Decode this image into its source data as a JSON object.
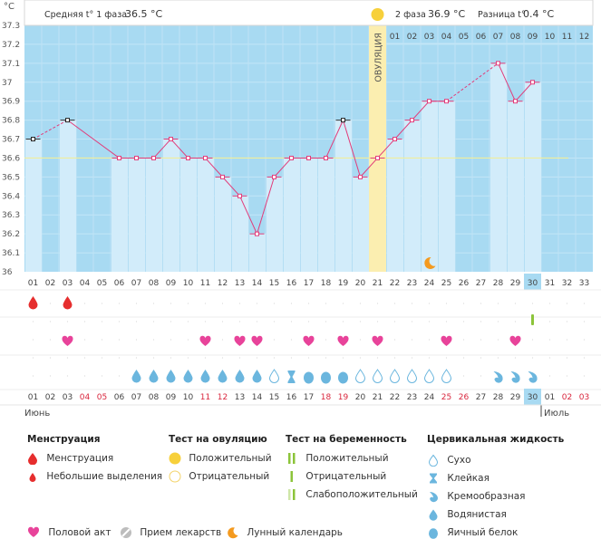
{
  "chart_data": {
    "type": "line",
    "unit_label": "°C",
    "y_ticks": [
      "37.3",
      "37.2",
      "37.1",
      "37",
      "36.9",
      "36.8",
      "36.7",
      "36.6",
      "36.5",
      "36.4",
      "36.3",
      "36.2",
      "36.1",
      "36"
    ],
    "ylim": [
      36.0,
      37.3
    ],
    "baseline": 36.6,
    "header": {
      "phase1": "Средняя t° 1 фаза",
      "phase1_value": "36.5 °C",
      "phase2": "2 фаза",
      "phase2_value": "36.9 °C",
      "diff": "Разница t°",
      "diff_value": "0.4 °C"
    },
    "ovulation_label": "ОВУЛЯЦИЯ",
    "ovulation_day_index": 20,
    "cycle_days": [
      "01",
      "02",
      "03",
      "04",
      "05",
      "06",
      "07",
      "08",
      "09",
      "10",
      "11",
      "12",
      "13",
      "14",
      "15",
      "16",
      "17",
      "18",
      "19",
      "20",
      "21",
      "22",
      "23",
      "24",
      "25",
      "26",
      "27",
      "28",
      "29",
      "30",
      "31",
      "32",
      "33"
    ],
    "phase2_days": [
      "01",
      "02",
      "03",
      "04",
      "05",
      "06",
      "07",
      "08",
      "09",
      "10",
      "11",
      "12"
    ],
    "temps": [
      36.7,
      null,
      36.8,
      null,
      null,
      36.6,
      36.6,
      36.6,
      36.7,
      36.6,
      36.6,
      36.5,
      36.4,
      36.2,
      36.5,
      36.6,
      36.6,
      36.6,
      36.8,
      36.5,
      36.6,
      36.7,
      36.8,
      36.9,
      36.9,
      null,
      null,
      37.1,
      36.9,
      37.0,
      null,
      null,
      null
    ],
    "black_markers": [
      0,
      2,
      18
    ],
    "dashed_segments": [
      [
        0,
        2
      ],
      [
        24,
        27
      ]
    ],
    "solid_gaps_skip": [
      [
        0,
        2
      ],
      [
        24,
        27
      ]
    ],
    "calendar_days": [
      "01",
      "02",
      "03",
      "04",
      "05",
      "06",
      "07",
      "08",
      "09",
      "10",
      "11",
      "12",
      "13",
      "14",
      "15",
      "16",
      "17",
      "18",
      "19",
      "20",
      "21",
      "22",
      "23",
      "24",
      "25",
      "26",
      "27",
      "28",
      "29",
      "30",
      "01",
      "02",
      "03"
    ],
    "weekend_days": [
      3,
      4,
      10,
      11,
      17,
      18,
      24,
      25,
      31,
      32
    ],
    "today_index": 29,
    "month_left": "Июнь",
    "month_right": "Июль",
    "menstruation_days": [
      0,
      2
    ],
    "pregnancy_test_day": 29,
    "intercourse_days": [
      2,
      10,
      12,
      13,
      16,
      18,
      20,
      24,
      28
    ],
    "moon_day": 23,
    "fluid": [
      "",
      "",
      "",
      "",
      "",
      "",
      "drop",
      "drop",
      "drop",
      "drop",
      "drop",
      "drop",
      "drop",
      "drop",
      "empty",
      "hourglass",
      "big",
      "big",
      "big",
      "empty",
      "empty",
      "empty",
      "empty",
      "empty",
      "empty",
      "",
      "",
      "cream",
      "cream",
      "cream",
      "",
      "",
      ""
    ]
  },
  "legend": {
    "menstruation": {
      "title": "Менструация",
      "items": [
        "Менструация",
        "Небольшие выделения"
      ]
    },
    "ovulation_test": {
      "title": "Тест на овуляцию",
      "items": [
        "Положительный",
        "Отрицательный"
      ]
    },
    "pregnancy_test": {
      "title": "Тест на беременность",
      "items": [
        "Положительный",
        "Отрицательный",
        "Слабоположительный"
      ]
    },
    "cervical": {
      "title": "Цервикальная жидкость",
      "items": [
        "Сухо",
        "Клейкая",
        "Кремообразная",
        "Водянистая",
        "Яичный белок"
      ]
    },
    "bottom": [
      "Половой акт",
      "Прием лекарств",
      "Лунный календарь"
    ]
  },
  "colors": {
    "grid_bg": "#a8daf2",
    "bar": "#d2ecfa",
    "line": "#e23c7a",
    "ovulation": "#fbeeb0",
    "ovulation_dot": "#f7d03b",
    "drop_red": "#e62e2e",
    "heart": "#e8439a",
    "fluid": "#6bb6de",
    "moon": "#f49a1f",
    "today": "#a8daf2"
  }
}
